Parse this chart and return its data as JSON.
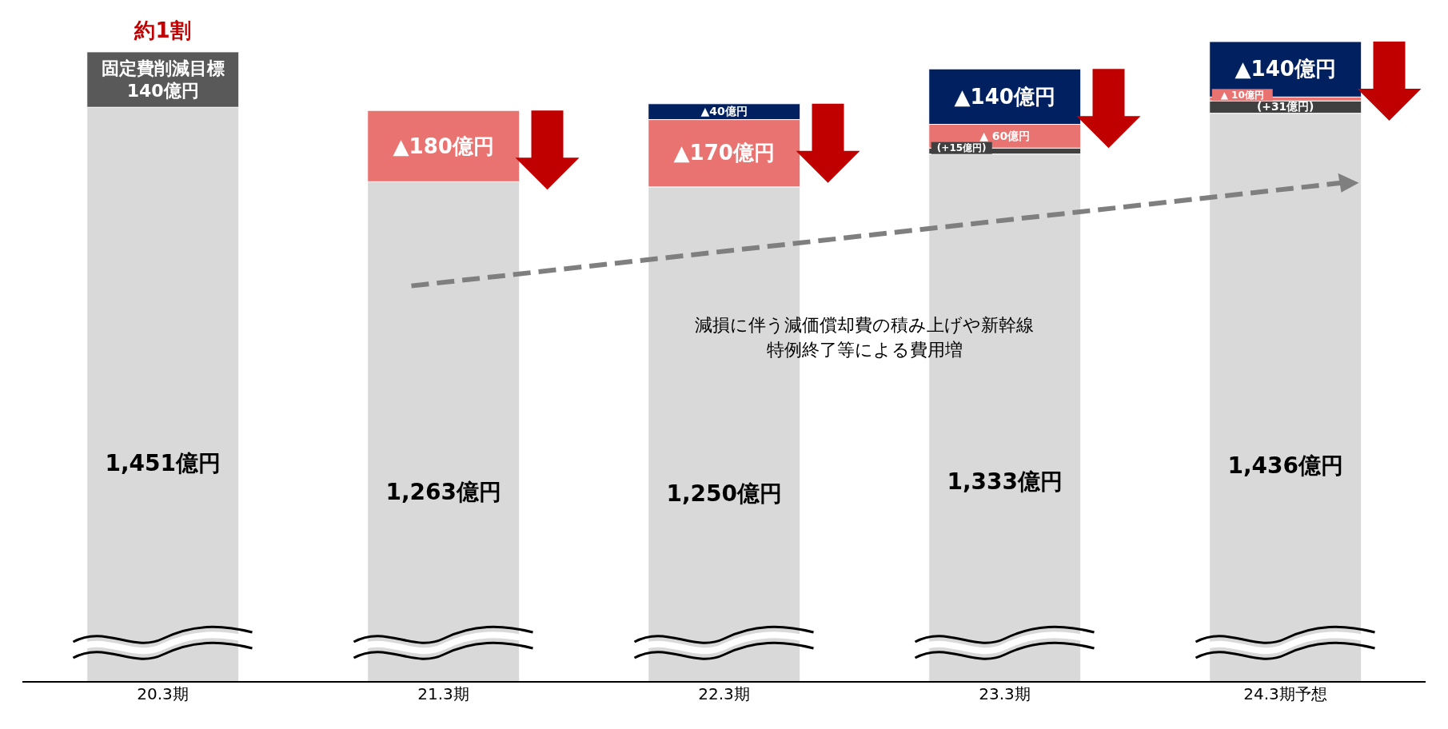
{
  "chart_data": {
    "type": "bar",
    "stacked": true,
    "categories": [
      "20.3期",
      "21.3期",
      "22.3期",
      "23.3期",
      "24.3期予想"
    ],
    "series": [
      {
        "color": "#d9d9d9",
        "values": [
          1451,
          1263,
          1250,
          1333,
          1436
        ],
        "value_labels": [
          "1,451億円",
          "1,263億円",
          "1,250億円",
          "1,333億円",
          "1,436億円"
        ]
      },
      {
        "color": "#595959",
        "values": [
          140,
          null,
          null,
          null,
          null
        ],
        "value_labels": [
          "固定費削減目標140億円",
          null,
          null,
          null,
          null
        ]
      },
      {
        "color": "#404040",
        "values": [
          null,
          null,
          null,
          15,
          31
        ],
        "value_labels": [
          null,
          null,
          null,
          "(+15億円)",
          "(+31億円)"
        ]
      },
      {
        "color": "#e97371",
        "values": [
          null,
          180,
          170,
          60,
          10
        ],
        "value_labels": [
          null,
          "▲180億円",
          "▲170億円",
          "▲ 60億円",
          "▲ 10億円"
        ]
      },
      {
        "color": "#002060",
        "values": [
          null,
          null,
          40,
          140,
          140
        ],
        "value_labels": [
          null,
          null,
          "▲40億円",
          "▲140億円",
          "▲140億円"
        ]
      }
    ],
    "annotations": [
      {
        "text": "約1割",
        "x": "20.3期",
        "y": 1591
      },
      "減損に伴う減価償却費の積み上げや新幹線特例終了等による費用増"
    ]
  }
}
